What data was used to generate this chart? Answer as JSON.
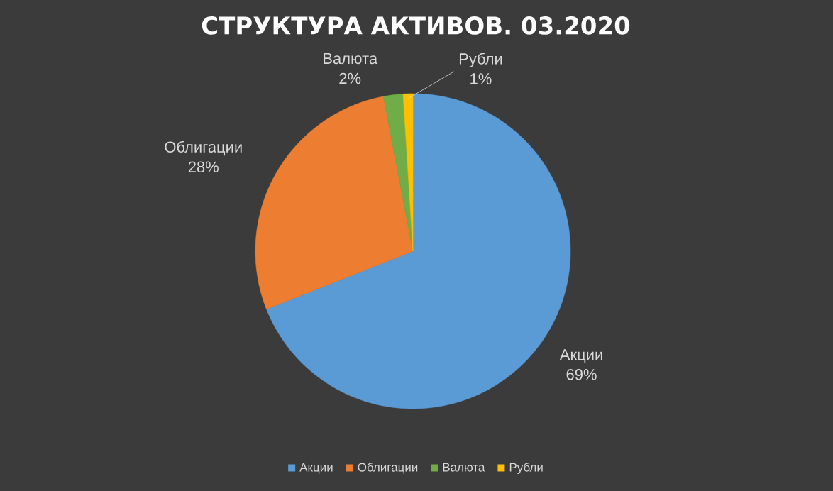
{
  "chart_data": {
    "type": "pie",
    "title": "СТРУКТУРА АКТИВОВ. 03.2020",
    "categories": [
      "Акции",
      "Облигации",
      "Валюта",
      "Рубли"
    ],
    "values": [
      69,
      28,
      2,
      1
    ],
    "value_labels": [
      "69%",
      "28%",
      "2%",
      "1%"
    ],
    "colors": [
      "#5b9bd5",
      "#ed7d31",
      "#70ad47",
      "#ffc000"
    ],
    "legend": "bottom"
  }
}
